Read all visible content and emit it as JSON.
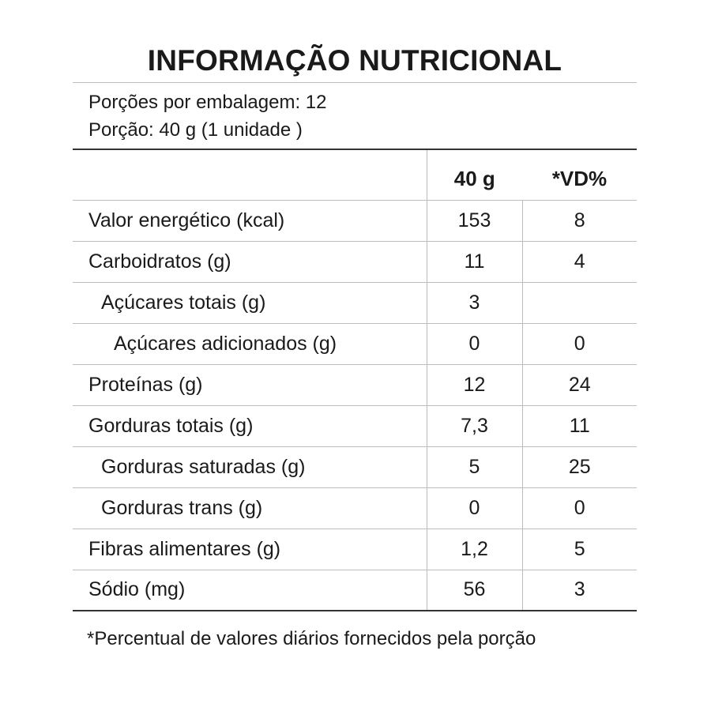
{
  "title": "INFORMAÇÃO NUTRICIONAL",
  "serving": {
    "per_package": "Porções por embalagem: 12",
    "portion": "Porção: 40 g (1 unidade )"
  },
  "table": {
    "headers": [
      "",
      "40 g",
      "*VD%"
    ],
    "rows": [
      {
        "label": "Valor energético (kcal)",
        "amount": "153",
        "vd": "8",
        "indent": 0
      },
      {
        "label": "Carboidratos (g)",
        "amount": "11",
        "vd": "4",
        "indent": 0
      },
      {
        "label": "Açúcares totais (g)",
        "amount": "3",
        "vd": "",
        "indent": 1
      },
      {
        "label": "Açúcares adicionados (g)",
        "amount": "0",
        "vd": "0",
        "indent": 2
      },
      {
        "label": "Proteínas (g)",
        "amount": "12",
        "vd": "24",
        "indent": 0
      },
      {
        "label": "Gorduras totais (g)",
        "amount": "7,3",
        "vd": "11",
        "indent": 0
      },
      {
        "label": "Gorduras saturadas (g)",
        "amount": "5",
        "vd": "25",
        "indent": 1
      },
      {
        "label": "Gorduras trans (g)",
        "amount": "0",
        "vd": "0",
        "indent": 1
      },
      {
        "label": "Fibras alimentares (g)",
        "amount": "1,2",
        "vd": "5",
        "indent": 0
      },
      {
        "label": "Sódio (mg)",
        "amount": "56",
        "vd": "3",
        "indent": 0
      }
    ]
  },
  "footnote": "*Percentual de valores diários fornecidos pela porção"
}
